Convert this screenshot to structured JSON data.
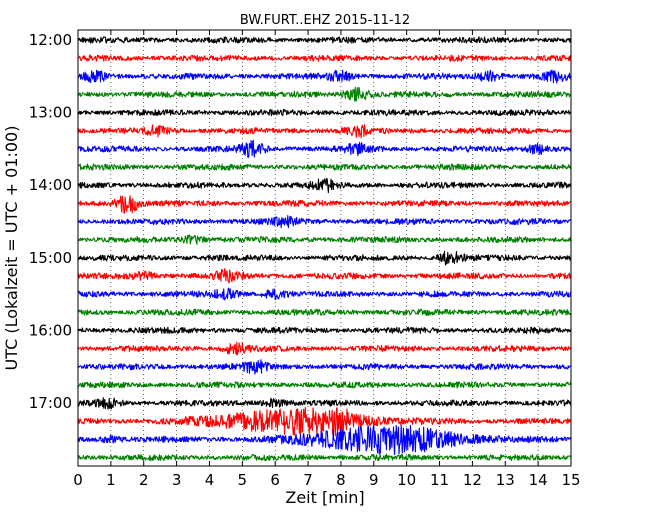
{
  "chart_data": {
    "type": "line",
    "title": "BW.FURT..EHZ 2015-11-12",
    "xlabel": "Zeit  [min]",
    "ylabel": "UTC (Lokalzeit = UTC + 01:00)",
    "xlim": [
      0,
      15
    ],
    "x_ticks": [
      "0",
      "1",
      "2",
      "3",
      "4",
      "5",
      "6",
      "7",
      "8",
      "9",
      "10",
      "11",
      "12",
      "13",
      "14",
      "15"
    ],
    "y_ticks": [
      "12:00",
      "13:00",
      "14:00",
      "15:00",
      "16:00",
      "17:00"
    ],
    "grid": "vertical dotted at each minute",
    "trace_interval_min": 15,
    "first_trace": "12:00",
    "traces": 24,
    "colors": [
      "#000000",
      "#ff0000",
      "#0000ff",
      "#008000"
    ],
    "events": [
      {
        "trace": 2,
        "minute": 0.5,
        "amp": 1.3
      },
      {
        "trace": 2,
        "minute": 8.0,
        "amp": 1.2
      },
      {
        "trace": 2,
        "minute": 12.5,
        "amp": 1.3
      },
      {
        "trace": 2,
        "minute": 14.5,
        "amp": 1.2
      },
      {
        "trace": 3,
        "minute": 8.5,
        "amp": 1.6
      },
      {
        "trace": 5,
        "minute": 2.4,
        "amp": 1.0
      },
      {
        "trace": 5,
        "minute": 8.5,
        "amp": 1.3
      },
      {
        "trace": 6,
        "minute": 5.3,
        "amp": 1.8
      },
      {
        "trace": 6,
        "minute": 8.5,
        "amp": 1.1
      },
      {
        "trace": 6,
        "minute": 14.0,
        "amp": 1.1
      },
      {
        "trace": 8,
        "minute": 7.5,
        "amp": 1.5
      },
      {
        "trace": 9,
        "minute": 1.5,
        "amp": 2.6
      },
      {
        "trace": 10,
        "minute": 6.3,
        "amp": 1.0
      },
      {
        "trace": 11,
        "minute": 3.5,
        "amp": 1.0
      },
      {
        "trace": 12,
        "minute": 11.3,
        "amp": 1.6
      },
      {
        "trace": 13,
        "minute": 4.6,
        "amp": 1.6
      },
      {
        "trace": 13,
        "minute": 2.0,
        "amp": 0.9
      },
      {
        "trace": 14,
        "minute": 4.5,
        "amp": 1.0
      },
      {
        "trace": 14,
        "minute": 6.0,
        "amp": 1.0
      },
      {
        "trace": 17,
        "minute": 4.8,
        "amp": 1.4
      },
      {
        "trace": 18,
        "minute": 5.4,
        "amp": 1.5
      },
      {
        "trace": 20,
        "minute": 0.9,
        "amp": 1.0
      },
      {
        "trace": 20,
        "minute": 6.0,
        "amp": 1.0
      },
      {
        "trace": 21,
        "minute": 6.5,
        "amp": 3.2,
        "width": 2.2
      },
      {
        "trace": 21,
        "minute": 8.0,
        "amp": 1.6
      },
      {
        "trace": 22,
        "minute": 9.4,
        "amp": 3.6,
        "width": 2.2
      },
      {
        "trace": 22,
        "minute": 1.0,
        "amp": 0.9
      }
    ]
  }
}
